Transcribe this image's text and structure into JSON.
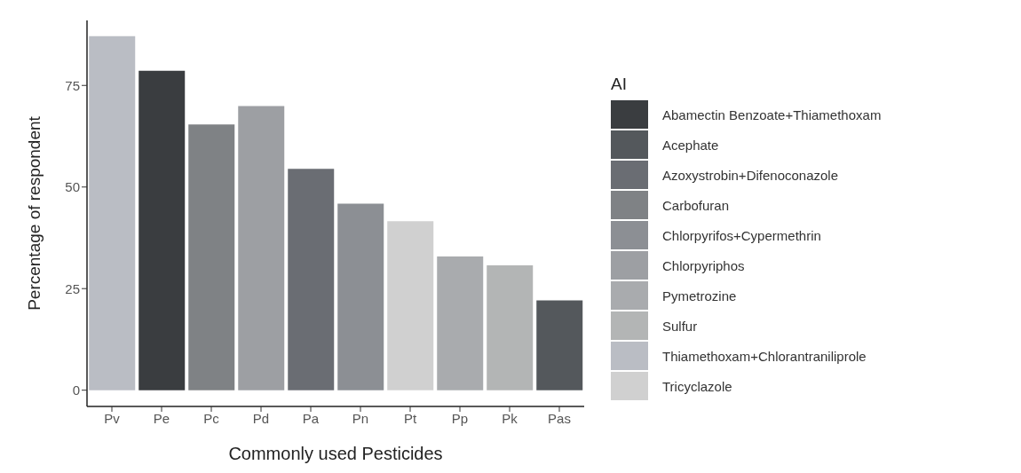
{
  "chart_data": {
    "type": "bar",
    "xlabel": "Commonly used Pesticides",
    "ylabel": "Percentage of respondent",
    "legend_title": "AI",
    "legend": "right",
    "stacked": true,
    "grid": false,
    "categories": [
      "Pv",
      "Pe",
      "Pc",
      "Pd",
      "Pa",
      "Pn",
      "Pt",
      "Pp",
      "Pk",
      "Pas"
    ],
    "ylim": [
      -4,
      91
    ],
    "yticks": [
      0,
      25,
      50,
      75
    ],
    "series": [
      {
        "name": "Abamectin Benzoate+Thiamethoxam",
        "color": "#3a3d40",
        "values": [
          null,
          78.6,
          null,
          null,
          null,
          null,
          null,
          null,
          null,
          null
        ]
      },
      {
        "name": "Acephate",
        "color": "#54585c",
        "values": [
          null,
          null,
          null,
          null,
          null,
          null,
          null,
          null,
          null,
          22.1
        ]
      },
      {
        "name": "Azoxystrobin+Difenoconazole",
        "color": "#6a6d73",
        "values": [
          null,
          null,
          null,
          null,
          54.5,
          null,
          null,
          null,
          null,
          null
        ]
      },
      {
        "name": "Carbofuran",
        "color": "#7f8285",
        "values": [
          null,
          null,
          65.4,
          null,
          null,
          null,
          null,
          null,
          null,
          null
        ]
      },
      {
        "name": "Chlorpyrifos+Cypermethrin",
        "color": "#8c8f94",
        "values": [
          null,
          null,
          null,
          null,
          null,
          45.9,
          null,
          null,
          null,
          null
        ]
      },
      {
        "name": "Chlorpyriphos",
        "color": "#9d9fa3",
        "values": [
          null,
          null,
          null,
          69.9,
          null,
          null,
          null,
          null,
          null,
          null
        ]
      },
      {
        "name": "Pymetrozine",
        "color": "#a9abae",
        "values": [
          null,
          null,
          null,
          null,
          null,
          null,
          null,
          32.9,
          null,
          null
        ]
      },
      {
        "name": "Sulfur",
        "color": "#b3b5b5",
        "values": [
          null,
          null,
          null,
          null,
          null,
          null,
          null,
          null,
          30.7,
          null
        ]
      },
      {
        "name": "Thiamethoxam+Chlorantraniliprole",
        "color": "#babdc4",
        "values": [
          87.1,
          null,
          null,
          null,
          null,
          null,
          null,
          null,
          null,
          null
        ]
      },
      {
        "name": "Tricyclazole",
        "color": "#d0d0d0",
        "values": [
          null,
          null,
          null,
          null,
          null,
          null,
          41.6,
          null,
          null,
          null
        ]
      }
    ]
  }
}
